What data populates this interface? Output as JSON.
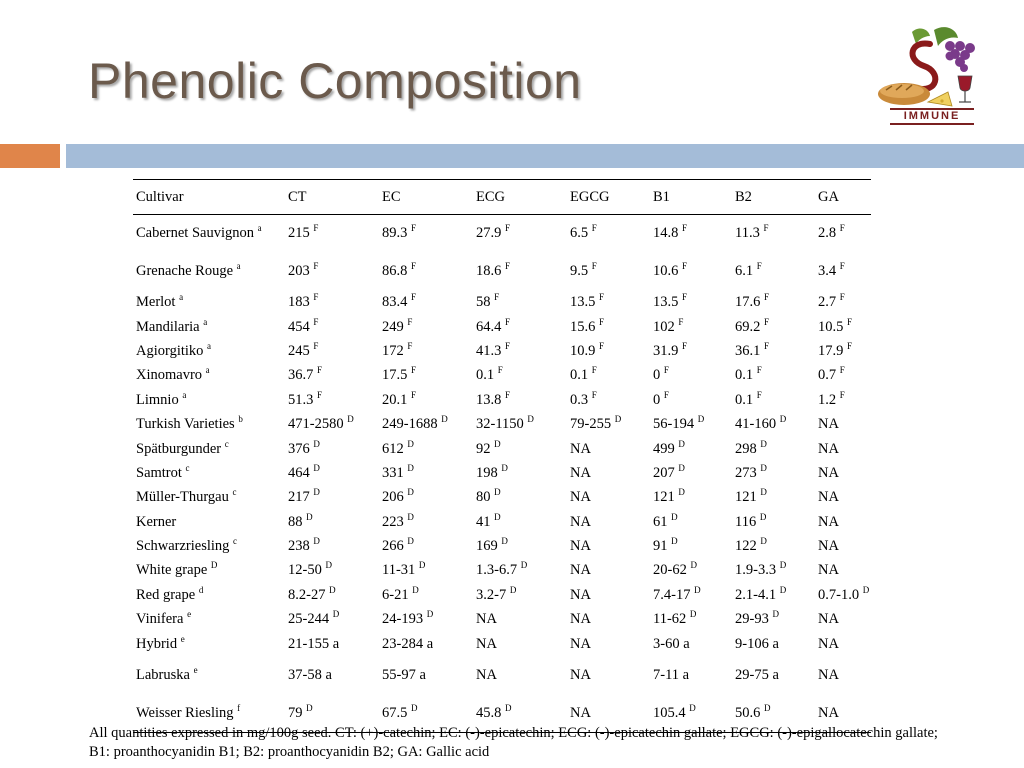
{
  "title": "Phenolic Composition",
  "logo": {
    "text": "IMMUNE",
    "icon": "grape-wine-bread-logo-icon"
  },
  "colors": {
    "title": "#6b5a4c",
    "accent_orange": "#e0854a",
    "accent_blue": "#a4bcd8"
  },
  "table": {
    "headers": [
      "Cultivar",
      "CT",
      "EC",
      "ECG",
      "EGCG",
      "B1",
      "B2",
      "GA"
    ],
    "rows": [
      {
        "tall": true,
        "cells": [
          [
            "Cabernet Sauvignon ",
            "a"
          ],
          [
            "215  ",
            "F"
          ],
          [
            "89.3 ",
            "F"
          ],
          [
            "27.9 ",
            "F"
          ],
          [
            "6.5 ",
            "F"
          ],
          [
            "14.8 ",
            "F"
          ],
          [
            "11.3 ",
            "F"
          ],
          [
            "2.8 ",
            "F"
          ]
        ]
      },
      {
        "tall": true,
        "cells": [
          [
            "Grenache Rouge ",
            "a"
          ],
          [
            "203 ",
            "F"
          ],
          [
            "86.8 ",
            "F"
          ],
          [
            "18.6 ",
            "F"
          ],
          [
            "9.5 ",
            "F"
          ],
          [
            "10.6 ",
            "F"
          ],
          [
            "6.1 ",
            "F"
          ],
          [
            "3.4 ",
            "F"
          ]
        ]
      },
      {
        "cells": [
          [
            "Merlot ",
            "a"
          ],
          [
            "183 ",
            "F"
          ],
          [
            "83.4 ",
            "F"
          ],
          [
            "58 ",
            "F"
          ],
          [
            "13.5 ",
            "F"
          ],
          [
            "13.5 ",
            "F"
          ],
          [
            "17.6 ",
            "F"
          ],
          [
            "2.7 ",
            "F"
          ]
        ]
      },
      {
        "cells": [
          [
            "Mandilaria ",
            "a"
          ],
          [
            "454 ",
            "F"
          ],
          [
            "249 ",
            "F"
          ],
          [
            "64.4 ",
            "F"
          ],
          [
            "15.6 ",
            "F"
          ],
          [
            "102 ",
            "F"
          ],
          [
            "69.2 ",
            "F"
          ],
          [
            "10.5 ",
            "F"
          ]
        ]
      },
      {
        "cells": [
          [
            "Agiorgitiko ",
            "a"
          ],
          [
            "245 ",
            "F"
          ],
          [
            "172 ",
            "F"
          ],
          [
            "41.3 ",
            "F"
          ],
          [
            "10.9 ",
            "F"
          ],
          [
            "31.9 ",
            "F"
          ],
          [
            "36.1 ",
            "F"
          ],
          [
            "17.9 ",
            "F"
          ]
        ]
      },
      {
        "cells": [
          [
            "Xinomavro ",
            "a"
          ],
          [
            "36.7 ",
            "F"
          ],
          [
            "17.5 ",
            "F"
          ],
          [
            "0.1 ",
            "F"
          ],
          [
            "0.1 ",
            "F"
          ],
          [
            "0 ",
            "F"
          ],
          [
            "0.1 ",
            "F"
          ],
          [
            "0.7 ",
            "F"
          ]
        ]
      },
      {
        "cells": [
          [
            "Limnio ",
            "a"
          ],
          [
            "51.3 ",
            "F"
          ],
          [
            "20.1 ",
            "F"
          ],
          [
            "13.8 ",
            "F"
          ],
          [
            "0.3 ",
            "F"
          ],
          [
            "0 ",
            "F"
          ],
          [
            "0.1 ",
            "F"
          ],
          [
            "1.2 ",
            "F"
          ]
        ]
      },
      {
        "cells": [
          [
            "Turkish Varieties ",
            "b"
          ],
          [
            "471-2580 ",
            "D"
          ],
          [
            "249-1688 ",
            "D"
          ],
          [
            "32-1150 ",
            "D"
          ],
          [
            "79-255 ",
            "D"
          ],
          [
            "56-194 ",
            "D"
          ],
          [
            "41-160 ",
            "D"
          ],
          [
            "NA",
            ""
          ]
        ]
      },
      {
        "cells": [
          [
            "Spätburgunder ",
            "c"
          ],
          [
            "376 ",
            "D"
          ],
          [
            "612 ",
            "D"
          ],
          [
            "92 ",
            "D"
          ],
          [
            "NA",
            ""
          ],
          [
            "499 ",
            "D"
          ],
          [
            "298 ",
            "D"
          ],
          [
            "NA",
            ""
          ]
        ]
      },
      {
        "cells": [
          [
            "Samtrot ",
            "c"
          ],
          [
            "464 ",
            "D"
          ],
          [
            "331 ",
            "D"
          ],
          [
            "198 ",
            "D"
          ],
          [
            "NA",
            ""
          ],
          [
            "207 ",
            "D"
          ],
          [
            "273 ",
            "D"
          ],
          [
            "NA",
            ""
          ]
        ]
      },
      {
        "cells": [
          [
            "Müller-Thurgau ",
            "c"
          ],
          [
            "217 ",
            "D"
          ],
          [
            "206 ",
            "D"
          ],
          [
            "80 ",
            "D"
          ],
          [
            "NA",
            ""
          ],
          [
            "121 ",
            "D"
          ],
          [
            "121 ",
            "D"
          ],
          [
            "NA",
            ""
          ]
        ]
      },
      {
        "cells": [
          [
            "Kerner",
            ""
          ],
          [
            "88 ",
            "D"
          ],
          [
            "223 ",
            "D"
          ],
          [
            "41 ",
            "D"
          ],
          [
            "NA",
            ""
          ],
          [
            "61 ",
            "D"
          ],
          [
            "116 ",
            "D"
          ],
          [
            "NA",
            ""
          ]
        ]
      },
      {
        "cells": [
          [
            "Schwarzriesling ",
            "c"
          ],
          [
            "238 ",
            "D"
          ],
          [
            "266 ",
            "D"
          ],
          [
            "169 ",
            "D"
          ],
          [
            "NA",
            ""
          ],
          [
            "91 ",
            "D"
          ],
          [
            "122 ",
            "D"
          ],
          [
            "NA",
            ""
          ]
        ]
      },
      {
        "cells": [
          [
            "White grape ",
            "D"
          ],
          [
            "12-50 ",
            "D"
          ],
          [
            "11-31 ",
            "D"
          ],
          [
            "1.3-6.7 ",
            "D"
          ],
          [
            "NA",
            ""
          ],
          [
            "20-62 ",
            "D"
          ],
          [
            "1.9-3.3 ",
            "D"
          ],
          [
            "NA",
            ""
          ]
        ]
      },
      {
        "cells": [
          [
            "Red grape ",
            "d"
          ],
          [
            "8.2-27 ",
            "D"
          ],
          [
            "6-21 ",
            "D"
          ],
          [
            "3.2-7 ",
            "D"
          ],
          [
            "NA",
            ""
          ],
          [
            "7.4-17 ",
            "D"
          ],
          [
            "2.1-4.1 ",
            "D"
          ],
          [
            "0.7-1.0 ",
            "D"
          ]
        ]
      },
      {
        "cells": [
          [
            "Vinifera ",
            "e"
          ],
          [
            "25-244 ",
            "D"
          ],
          [
            "24-193 ",
            "D"
          ],
          [
            "NA",
            ""
          ],
          [
            "NA",
            ""
          ],
          [
            "11-62 ",
            "D"
          ],
          [
            "29-93 ",
            "D"
          ],
          [
            "NA",
            ""
          ]
        ]
      },
      {
        "cells": [
          [
            "Hybrid ",
            "e"
          ],
          [
            "21-155 a",
            ""
          ],
          [
            "23-284 a",
            ""
          ],
          [
            "NA",
            ""
          ],
          [
            "NA",
            ""
          ],
          [
            "3-60 a",
            ""
          ],
          [
            "9-106 a",
            ""
          ],
          [
            "NA",
            ""
          ]
        ]
      },
      {
        "tall": true,
        "cells": [
          [
            "Labruska ",
            "e"
          ],
          [
            "37-58 a",
            ""
          ],
          [
            "55-97 a",
            ""
          ],
          [
            "NA",
            ""
          ],
          [
            "NA",
            ""
          ],
          [
            "7-11 a",
            ""
          ],
          [
            "29-75 a",
            ""
          ],
          [
            "NA",
            ""
          ]
        ]
      },
      {
        "tall": true,
        "cells": [
          [
            "Weisser Riesling ",
            "f"
          ],
          [
            "79 ",
            "D"
          ],
          [
            "67.5 ",
            "D"
          ],
          [
            "45.8 ",
            "D"
          ],
          [
            "NA",
            ""
          ],
          [
            "105.4 ",
            "D"
          ],
          [
            "50.6 ",
            "D"
          ],
          [
            "NA",
            ""
          ]
        ]
      }
    ]
  },
  "footnote": "All quantities expressed in mg/100g seed. CT: (+)-catechin; EC: (-)-epicatechin; ECG: (-)-epicatechin gallate; EGCG: (-)-epigallocatechin gallate; B1: proanthocyanidin B1; B2: proanthocyanidin B2; GA: Gallic acid"
}
